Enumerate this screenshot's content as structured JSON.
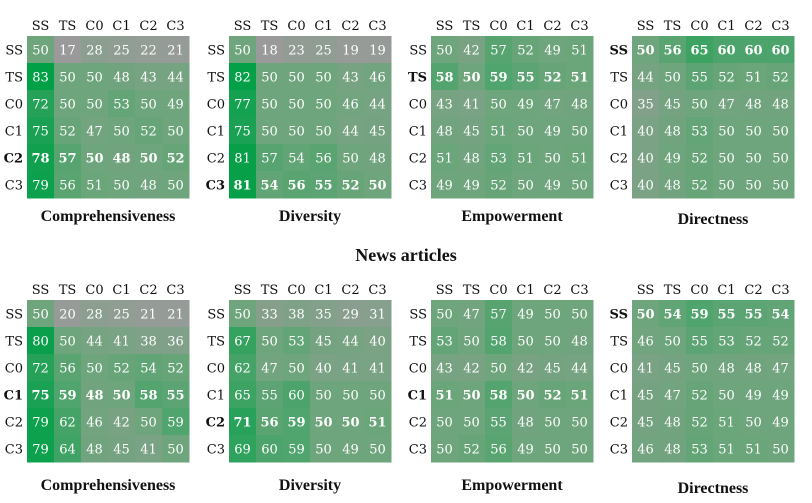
{
  "section_title": "News articles",
  "colors": {
    "low": "#9a9a9a",
    "mid": "#6ea57c",
    "high": "#00a046",
    "text": "#ffffff",
    "label": "#111111"
  },
  "chart_data": [
    {
      "type": "heatmap",
      "group": "top",
      "title": "Comprehensiveness",
      "x_labels": [
        "SS",
        "TS",
        "C0",
        "C1",
        "C2",
        "C3"
      ],
      "y_labels": [
        "SS",
        "TS",
        "C0",
        "C1",
        "C2",
        "C3"
      ],
      "bold_row": 4,
      "bold_col": null,
      "values": [
        [
          50,
          17,
          28,
          25,
          22,
          21
        ],
        [
          83,
          50,
          50,
          48,
          43,
          44
        ],
        [
          72,
          50,
          50,
          53,
          50,
          49
        ],
        [
          75,
          52,
          47,
          50,
          52,
          50
        ],
        [
          78,
          57,
          50,
          48,
          50,
          52
        ],
        [
          79,
          56,
          51,
          50,
          48,
          50
        ]
      ]
    },
    {
      "type": "heatmap",
      "group": "top",
      "title": "Diversity",
      "x_labels": [
        "SS",
        "TS",
        "C0",
        "C1",
        "C2",
        "C3"
      ],
      "y_labels": [
        "SS",
        "TS",
        "C0",
        "C1",
        "C2",
        "C3"
      ],
      "bold_row": 5,
      "bold_col": null,
      "values": [
        [
          50,
          18,
          23,
          25,
          19,
          19
        ],
        [
          82,
          50,
          50,
          50,
          43,
          46
        ],
        [
          77,
          50,
          50,
          50,
          46,
          44
        ],
        [
          75,
          50,
          50,
          50,
          44,
          45
        ],
        [
          81,
          57,
          54,
          56,
          50,
          48
        ],
        [
          81,
          54,
          56,
          55,
          52,
          50
        ]
      ]
    },
    {
      "type": "heatmap",
      "group": "top",
      "title": "Empowerment",
      "x_labels": [
        "SS",
        "TS",
        "C0",
        "C1",
        "C2",
        "C3"
      ],
      "y_labels": [
        "SS",
        "TS",
        "C0",
        "C1",
        "C2",
        "C3"
      ],
      "bold_row": 1,
      "bold_col": null,
      "values": [
        [
          50,
          42,
          57,
          52,
          49,
          51
        ],
        [
          58,
          50,
          59,
          55,
          52,
          51
        ],
        [
          43,
          41,
          50,
          49,
          47,
          48
        ],
        [
          48,
          45,
          51,
          50,
          49,
          50
        ],
        [
          51,
          48,
          53,
          51,
          50,
          51
        ],
        [
          49,
          49,
          52,
          50,
          49,
          50
        ]
      ]
    },
    {
      "type": "heatmap",
      "group": "top",
      "title": "Directness",
      "x_labels": [
        "SS",
        "TS",
        "C0",
        "C1",
        "C2",
        "C3"
      ],
      "y_labels": [
        "SS",
        "TS",
        "C0",
        "C1",
        "C2",
        "C3"
      ],
      "bold_row": 0,
      "bold_col": null,
      "values": [
        [
          50,
          56,
          65,
          60,
          60,
          60
        ],
        [
          44,
          50,
          55,
          52,
          51,
          52
        ],
        [
          35,
          45,
          50,
          47,
          48,
          48
        ],
        [
          40,
          48,
          53,
          50,
          50,
          50
        ],
        [
          40,
          49,
          52,
          50,
          50,
          50
        ],
        [
          40,
          48,
          52,
          50,
          50,
          50
        ]
      ]
    },
    {
      "type": "heatmap",
      "group": "bottom",
      "title": "Comprehensiveness",
      "x_labels": [
        "SS",
        "TS",
        "C0",
        "C1",
        "C2",
        "C3"
      ],
      "y_labels": [
        "SS",
        "TS",
        "C0",
        "C1",
        "C2",
        "C3"
      ],
      "bold_row": 3,
      "bold_col": null,
      "values": [
        [
          50,
          20,
          28,
          25,
          21,
          21
        ],
        [
          80,
          50,
          44,
          41,
          38,
          36
        ],
        [
          72,
          56,
          50,
          52,
          54,
          52
        ],
        [
          75,
          59,
          48,
          50,
          58,
          55
        ],
        [
          79,
          62,
          46,
          42,
          50,
          59
        ],
        [
          79,
          64,
          48,
          45,
          41,
          50
        ]
      ]
    },
    {
      "type": "heatmap",
      "group": "bottom",
      "title": "Diversity",
      "x_labels": [
        "SS",
        "TS",
        "C0",
        "C1",
        "C2",
        "C3"
      ],
      "y_labels": [
        "SS",
        "TS",
        "C0",
        "C1",
        "C2",
        "C3"
      ],
      "bold_row": 4,
      "bold_col": null,
      "values": [
        [
          50,
          33,
          38,
          35,
          29,
          31
        ],
        [
          67,
          50,
          53,
          45,
          44,
          40
        ],
        [
          62,
          47,
          50,
          40,
          41,
          41
        ],
        [
          65,
          55,
          60,
          50,
          50,
          50
        ],
        [
          71,
          56,
          59,
          50,
          50,
          51
        ],
        [
          69,
          60,
          59,
          50,
          49,
          50
        ]
      ]
    },
    {
      "type": "heatmap",
      "group": "bottom",
      "title": "Empowerment",
      "x_labels": [
        "SS",
        "TS",
        "C0",
        "C1",
        "C2",
        "C3"
      ],
      "y_labels": [
        "SS",
        "TS",
        "C0",
        "C1",
        "C2",
        "C3"
      ],
      "bold_row": 3,
      "bold_col": null,
      "values": [
        [
          50,
          47,
          57,
          49,
          50,
          50
        ],
        [
          53,
          50,
          58,
          50,
          50,
          48
        ],
        [
          43,
          42,
          50,
          42,
          45,
          44
        ],
        [
          51,
          50,
          58,
          50,
          52,
          51
        ],
        [
          50,
          50,
          55,
          48,
          50,
          50
        ],
        [
          50,
          52,
          56,
          49,
          50,
          50
        ]
      ]
    },
    {
      "type": "heatmap",
      "group": "bottom",
      "title": "Directness",
      "x_labels": [
        "SS",
        "TS",
        "C0",
        "C1",
        "C2",
        "C3"
      ],
      "y_labels": [
        "SS",
        "TS",
        "C0",
        "C1",
        "C2",
        "C3"
      ],
      "bold_row": 0,
      "bold_col": null,
      "values": [
        [
          50,
          54,
          59,
          55,
          55,
          54
        ],
        [
          46,
          50,
          55,
          53,
          52,
          52
        ],
        [
          41,
          45,
          50,
          48,
          48,
          47
        ],
        [
          45,
          47,
          52,
          50,
          49,
          49
        ],
        [
          45,
          48,
          52,
          51,
          50,
          49
        ],
        [
          46,
          48,
          53,
          51,
          51,
          50
        ]
      ]
    }
  ]
}
